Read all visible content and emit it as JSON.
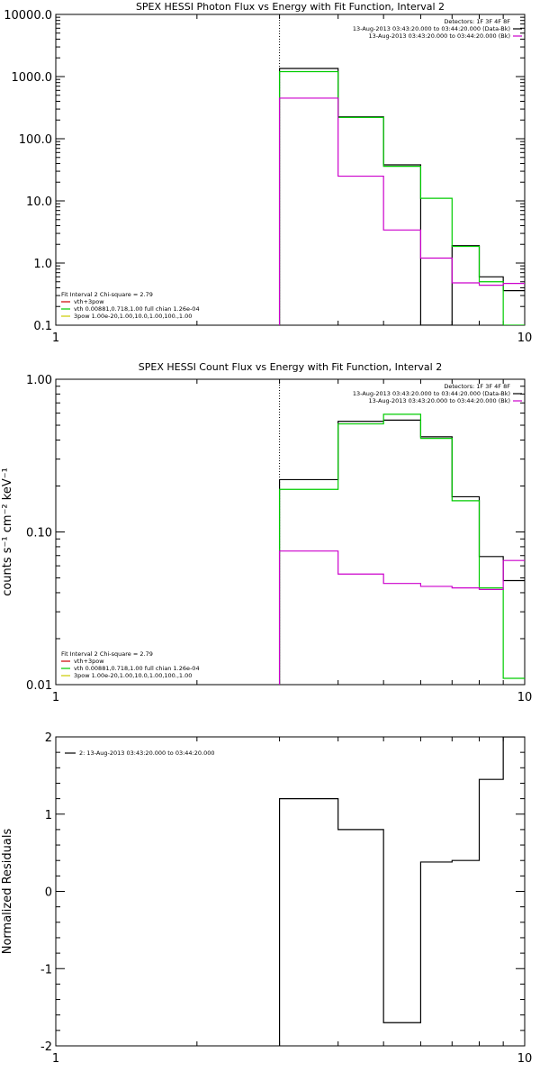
{
  "chart_data": [
    {
      "type": "line",
      "title": "SPEX HESSI Photon Flux vs Energy with Fit Function, Interval 2",
      "xlabel": "",
      "ylabel": "",
      "xscale": "log",
      "yscale": "log",
      "xlim": [
        1,
        10
      ],
      "ylim": [
        0.1,
        10000
      ],
      "xticks": [
        1,
        10
      ],
      "xtick_labels": [
        "1",
        "10"
      ],
      "yticks": [
        0.1,
        1,
        10,
        100,
        1000,
        10000
      ],
      "ytick_labels": [
        "0.1",
        "1.0",
        "10.0",
        "100.0",
        "1000.0",
        "10000.0"
      ],
      "vline": 3,
      "info_top": [
        {
          "text": "Detectors: 1F 3F 4F 8F",
          "color": "#000000"
        },
        {
          "text": "13-Aug-2013 03:43:20.000 to 03:44:20.000 (Data-Bk)",
          "color": "#000000",
          "swatch": true
        },
        {
          "text": "13-Aug-2013 03:43:20.000 to 03:44:20.000 (Bk)",
          "color": "#cc00cc",
          "swatch": true
        }
      ],
      "info_bottom": [
        {
          "text": "Fit Interval 2   Chi-square = 2.79",
          "color": "#000000"
        },
        {
          "text": "vth+3pow",
          "color": "#cc0000",
          "swatch": true
        },
        {
          "text": "vth 0.00881,0.718,1.00  full chian 1.26e-04",
          "color": "#00cc00",
          "swatch": true
        },
        {
          "text": "3pow 1.00e-20,1.00,10.0,1.00,100.,1.00",
          "color": "#cccc00",
          "swatch": true
        }
      ],
      "series": [
        {
          "color": "#000000",
          "edges": [
            3,
            4,
            5,
            6,
            7,
            8,
            9,
            10
          ],
          "values": [
            1350,
            225,
            38,
            0.1,
            1.9,
            0.6,
            0.36
          ]
        },
        {
          "color": "#00cc00",
          "edges": [
            3,
            4,
            5,
            6,
            7,
            8,
            9,
            10
          ],
          "values": [
            1200,
            220,
            36,
            11,
            1.85,
            0.5,
            0.1
          ]
        },
        {
          "color": "#cc00cc",
          "edges": [
            3,
            4,
            5,
            6,
            7,
            8,
            9,
            10
          ],
          "values": [
            450,
            25,
            3.4,
            1.2,
            0.48,
            0.44,
            0.47
          ]
        }
      ]
    },
    {
      "type": "line",
      "title": "SPEX HESSI Count Flux vs Energy with Fit Function, Interval 2",
      "xlabel": "",
      "ylabel": "counts s⁻¹ cm⁻² keV⁻¹",
      "xscale": "log",
      "yscale": "log",
      "xlim": [
        1,
        10
      ],
      "ylim": [
        0.01,
        1
      ],
      "xticks": [
        1,
        10
      ],
      "xtick_labels": [
        "1",
        "10"
      ],
      "yticks": [
        0.01,
        0.1,
        1
      ],
      "ytick_labels": [
        "0.01",
        "0.10",
        "1.00"
      ],
      "vline": 3,
      "info_top": [
        {
          "text": "Detectors: 1F 3F 4F 8F",
          "color": "#000000"
        },
        {
          "text": "13-Aug-2013 03:43:20.000 to 03:44:20.000 (Data-Bk)",
          "color": "#000000",
          "swatch": true
        },
        {
          "text": "13-Aug-2013 03:43:20.000 to 03:44:20.000 (Bk)",
          "color": "#cc00cc",
          "swatch": true
        }
      ],
      "info_bottom": [
        {
          "text": "Fit Interval 2   Chi-square = 2.79",
          "color": "#000000"
        },
        {
          "text": "vth+3pow",
          "color": "#cc0000",
          "swatch": true
        },
        {
          "text": "vth 0.00881,0.718,1.00  full chian 1.26e-04",
          "color": "#00cc00",
          "swatch": true
        },
        {
          "text": "3pow 1.00e-20,1.00,10.0,1.00,100.,1.00",
          "color": "#cccc00",
          "swatch": true
        }
      ],
      "series": [
        {
          "color": "#000000",
          "edges": [
            3,
            4,
            5,
            6,
            7,
            8,
            9,
            10
          ],
          "values": [
            0.22,
            0.53,
            0.54,
            0.42,
            0.17,
            0.069,
            0.048
          ]
        },
        {
          "color": "#00cc00",
          "edges": [
            3,
            4,
            5,
            6,
            7,
            8,
            9,
            10
          ],
          "values": [
            0.19,
            0.51,
            0.59,
            0.41,
            0.16,
            0.043,
            0.011
          ]
        },
        {
          "color": "#cc00cc",
          "edges": [
            3,
            4,
            5,
            6,
            7,
            8,
            9,
            10
          ],
          "values": [
            0.075,
            0.053,
            0.046,
            0.044,
            0.043,
            0.042,
            0.065
          ]
        }
      ]
    },
    {
      "type": "line",
      "title": "",
      "xlabel": "",
      "ylabel": "Normalized Residuals",
      "xscale": "log",
      "yscale": "linear",
      "xlim": [
        1,
        10
      ],
      "ylim": [
        -2,
        2
      ],
      "xticks": [
        1,
        10
      ],
      "xtick_labels": [
        "1",
        "10"
      ],
      "yticks": [
        -2,
        -1,
        0,
        1,
        2
      ],
      "ytick_labels": [
        "-2",
        "-1",
        "0",
        "1",
        "2"
      ],
      "legend": [
        {
          "text": "2: 13-Aug-2013 03:43:20.000 to 03:44:20.000",
          "color": "#000000",
          "swatch": true
        }
      ],
      "series": [
        {
          "color": "#000000",
          "edges": [
            3,
            4,
            5,
            6,
            7,
            8,
            9,
            10
          ],
          "values": [
            1.2,
            0.8,
            -1.7,
            0.38,
            0.4,
            1.45,
            2.0
          ],
          "start_from": -2.2
        }
      ]
    }
  ]
}
